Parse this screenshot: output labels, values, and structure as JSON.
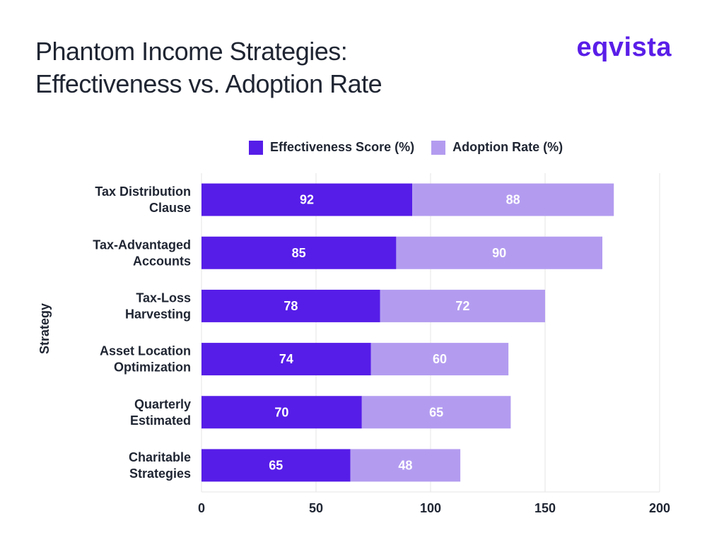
{
  "header": {
    "title_line1": "Phantom Income Strategies:",
    "title_line2": "Effectiveness vs. Adoption Rate",
    "logo": "eqvista"
  },
  "colors": {
    "effectiveness": "#561de8",
    "adoption": "#b39cf0",
    "grid": "#e6e6e6",
    "text": "#1f2532"
  },
  "chart_data": {
    "type": "bar",
    "orientation": "horizontal",
    "stacked": true,
    "categories": [
      [
        "Tax Distribution",
        "Clause"
      ],
      [
        "Tax-Advantaged",
        "Accounts"
      ],
      [
        "Tax-Loss",
        "Harvesting"
      ],
      [
        "Asset Location",
        "Optimization"
      ],
      [
        "Quarterly",
        "Estimated"
      ],
      [
        "Charitable",
        "Strategies"
      ]
    ],
    "series": [
      {
        "name": "Effectiveness Score (%)",
        "values": [
          92,
          85,
          78,
          74,
          70,
          65
        ]
      },
      {
        "name": "Adoption Rate (%)",
        "values": [
          88,
          90,
          72,
          60,
          65,
          48
        ]
      }
    ],
    "ylabel": "Strategy",
    "xlabel": "",
    "xlim": [
      0,
      200
    ],
    "xticks": [
      0,
      50,
      100,
      150,
      200
    ],
    "grid": "vertical",
    "legend_position": "top"
  }
}
